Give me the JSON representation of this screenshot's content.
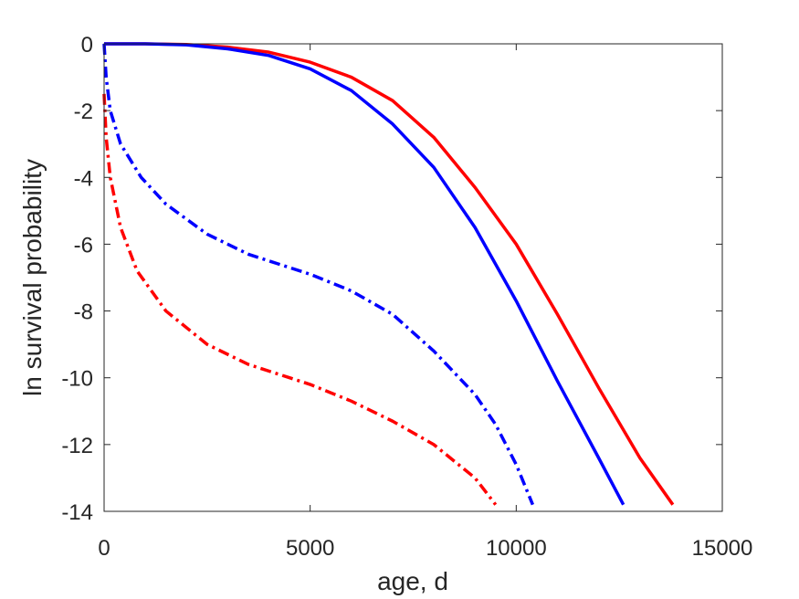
{
  "chart_data": {
    "type": "line",
    "title": "",
    "xlabel": "age, d",
    "ylabel": "ln survival probability",
    "xlim": [
      0,
      15000
    ],
    "ylim": [
      -14,
      0
    ],
    "grid": false,
    "legend": "none",
    "x_ticks": [
      0,
      5000,
      10000,
      15000
    ],
    "y_ticks": [
      0,
      -2,
      -4,
      -6,
      -8,
      -10,
      -12,
      -14
    ],
    "x_tick_labels": [
      "0",
      "5000",
      "10000",
      "15000"
    ],
    "y_tick_labels": [
      "0",
      "-2",
      "-4",
      "-6",
      "-8",
      "-10",
      "-12",
      "-14"
    ],
    "series": [
      {
        "color": "#ff0000",
        "style": "solid",
        "points": [
          [
            0,
            0
          ],
          [
            1000,
            0
          ],
          [
            2000,
            -0.02
          ],
          [
            3000,
            -0.1
          ],
          [
            4000,
            -0.25
          ],
          [
            5000,
            -0.55
          ],
          [
            6000,
            -1.0
          ],
          [
            7000,
            -1.7
          ],
          [
            8000,
            -2.8
          ],
          [
            9000,
            -4.3
          ],
          [
            10000,
            -6.0
          ],
          [
            11000,
            -8.1
          ],
          [
            12000,
            -10.3
          ],
          [
            13000,
            -12.4
          ],
          [
            13800,
            -13.8
          ]
        ]
      },
      {
        "color": "#0000ff",
        "style": "solid",
        "points": [
          [
            0,
            0
          ],
          [
            1000,
            0
          ],
          [
            2000,
            -0.03
          ],
          [
            3000,
            -0.15
          ],
          [
            4000,
            -0.35
          ],
          [
            5000,
            -0.75
          ],
          [
            6000,
            -1.4
          ],
          [
            7000,
            -2.4
          ],
          [
            8000,
            -3.7
          ],
          [
            9000,
            -5.5
          ],
          [
            10000,
            -7.7
          ],
          [
            11000,
            -10.1
          ],
          [
            12000,
            -12.4
          ],
          [
            12600,
            -13.8
          ]
        ]
      },
      {
        "color": "#0000ff",
        "style": "dashdot",
        "points": [
          [
            0,
            0
          ],
          [
            50,
            -1.0
          ],
          [
            150,
            -2.0
          ],
          [
            400,
            -3.0
          ],
          [
            900,
            -4.0
          ],
          [
            1500,
            -4.8
          ],
          [
            2500,
            -5.7
          ],
          [
            3500,
            -6.3
          ],
          [
            4500,
            -6.7
          ],
          [
            5000,
            -6.9
          ],
          [
            6000,
            -7.4
          ],
          [
            7000,
            -8.1
          ],
          [
            8000,
            -9.2
          ],
          [
            9000,
            -10.5
          ],
          [
            9500,
            -11.4
          ],
          [
            10000,
            -12.6
          ],
          [
            10400,
            -13.8
          ]
        ]
      },
      {
        "color": "#ff0000",
        "style": "dashdot",
        "points": [
          [
            0,
            -1.5
          ],
          [
            50,
            -2.8
          ],
          [
            150,
            -4.0
          ],
          [
            400,
            -5.5
          ],
          [
            800,
            -6.8
          ],
          [
            1500,
            -8.0
          ],
          [
            2500,
            -9.0
          ],
          [
            3500,
            -9.6
          ],
          [
            4500,
            -10.0
          ],
          [
            5000,
            -10.2
          ],
          [
            6000,
            -10.7
          ],
          [
            7000,
            -11.3
          ],
          [
            8000,
            -12.0
          ],
          [
            9000,
            -13.0
          ],
          [
            9500,
            -13.8
          ]
        ]
      }
    ]
  }
}
